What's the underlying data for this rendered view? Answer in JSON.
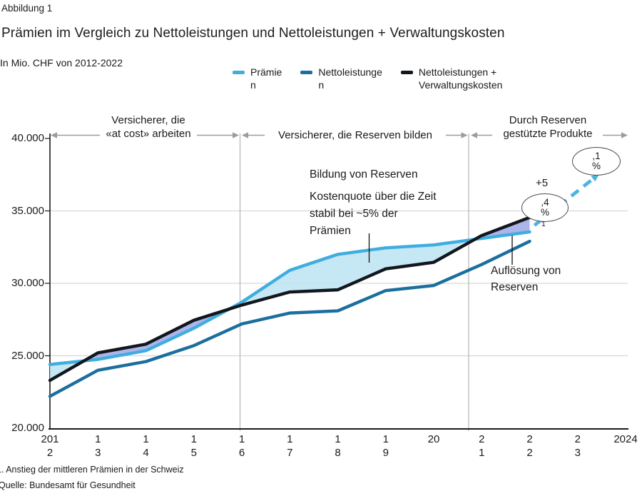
{
  "header": {
    "figure_label": "Abbildung 1",
    "title": "Prämien im Vergleich zu Nettoleistungen und Nettoleistungen + Verwaltungskosten",
    "subtitle": "In Mio. CHF von 2012-2022"
  },
  "legend": {
    "items": [
      {
        "label": "Prämie\nn",
        "color": "#3fade0"
      },
      {
        "label": "Nettoleistunge\nn",
        "color": "#1b6f9e"
      },
      {
        "label": "Nettoleistungen +\nVerwaltungskosten",
        "color": "#12161d"
      }
    ]
  },
  "sections": {
    "s1": "Versicherer, die\n«at cost» arbeiten",
    "s2": "Versicherer, die Reserven bilden",
    "s3": "Durch Reserven\ngestützte Produkte"
  },
  "annotations": {
    "bildung": "Bildung von Reserven",
    "kostenquote": "Kostenquote über die Zeit\nstabil bei ~5% der\nPrämien",
    "aufloesung": "Auflösung von\nReserven",
    "growth_2023_prefix": "+5",
    "growth_2023_ellipse": ",4\n%",
    "growth_2023_footnote": "1",
    "growth_2024_ellipse": ",1\n%"
  },
  "y_axis": {
    "labels": [
      "40.000",
      "35.000",
      "30.000",
      "25.000",
      "20.000"
    ]
  },
  "x_axis": {
    "labels": [
      "201\n2",
      "1\n3",
      "1\n4",
      "1\n5",
      "1\n6",
      "1\n7",
      "1\n8",
      "1\n9",
      "20",
      "2\n1",
      "2\n2",
      "2\n3",
      "2024"
    ]
  },
  "footnotes": {
    "note1": "1. Anstieg der mittleren Prämien in der Schweiz",
    "source": "Quelle: Bundesamt für Gesundheit"
  },
  "chart_data": {
    "type": "line",
    "title": "Prämien im Vergleich zu Nettoleistungen und Nettoleistungen + Verwaltungskosten",
    "unit": "Mio. CHF",
    "x": [
      2012,
      2013,
      2014,
      2015,
      2016,
      2017,
      2018,
      2019,
      2020,
      2021,
      2022
    ],
    "x_axis_range": [
      2012,
      2024
    ],
    "ylim": [
      20000,
      40000
    ],
    "y_ticks": [
      20000,
      25000,
      30000,
      35000,
      40000
    ],
    "grid": true,
    "legend_position": "top",
    "series": [
      {
        "name": "Prämien",
        "color": "#3fade0",
        "values": [
          24400,
          24750,
          25350,
          26900,
          28700,
          30900,
          32000,
          32450,
          32650,
          33100,
          33550
        ]
      },
      {
        "name": "Nettoleistungen",
        "color": "#1b6f9e",
        "values": [
          22200,
          24000,
          24600,
          25700,
          27200,
          27950,
          28100,
          29500,
          29850,
          31300,
          32900
        ]
      },
      {
        "name": "Nettoleistungen + Verwaltungskosten",
        "color": "#12161d",
        "values": [
          23300,
          25200,
          25800,
          27450,
          28500,
          29400,
          29550,
          31000,
          31450,
          33300,
          34550
        ]
      }
    ],
    "projection": {
      "name": "Prämien Projektion 2023-2024",
      "color": "#4cb4e2",
      "style": "dashed-arrow",
      "x": [
        2022.1,
        2023.45
      ],
      "values": [
        34000,
        37550
      ],
      "labels": [
        "+5,4%  (1)",
        ",1%"
      ]
    },
    "fills": [
      {
        "label": "bildung-von-reserven",
        "upper": "Prämien",
        "lower": "Nettoleistungen + Verwaltungskosten",
        "color": "#bee4f2",
        "opacity": 0.88
      },
      {
        "label": "aufloesung-von-reserven",
        "upper": "Nettoleistungen + Verwaltungskosten",
        "lower": "Prämien",
        "color": "#a7b1e8",
        "opacity": 0.95
      }
    ],
    "section_dividers_x": [
      2016,
      2020.75
    ]
  }
}
